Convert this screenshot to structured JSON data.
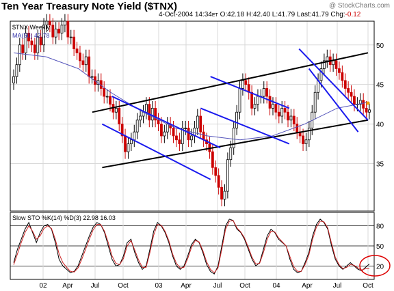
{
  "header": {
    "title": "Ten Year Treasury Note Yield ($TNX)",
    "watermark": "@ StockCharts.com",
    "date": "4-Oct-2004",
    "time": "14:34",
    "time_suffix": "ET",
    "open": "O:42.18",
    "high": "H:42.40",
    "low": "L:41.79",
    "last": "Last:41.79",
    "chg_label": "Chg:",
    "chg_value": "-0.12"
  },
  "price_panel": {
    "symbol_label": "$TNX Weekly",
    "ma_label": "MA(50) 42.78"
  },
  "sto_panel": {
    "label": "Slow STO %K(14) %D(3) 22.98 16.03"
  },
  "colors": {
    "up_bar": "#000000",
    "down_bar": "#cc0000",
    "ma_line": "#5555bb",
    "channel_black": "#000000",
    "channel_blue": "#1a1aee",
    "k_line": "#000000",
    "d_line": "#cc2222",
    "highlight_circle": "#dd0000",
    "grid": "#d8d8d8"
  },
  "chart_data": [
    {
      "type": "candlestick",
      "title": "Ten Year Treasury Note Yield ($TNX)",
      "x_ticks": [
        "02",
        "Apr",
        "Jul",
        "Oct",
        "03",
        "Apr",
        "Jul",
        "Oct",
        "04",
        "Apr",
        "Jul",
        "Oct"
      ],
      "y_ticks": [
        35,
        40,
        45,
        50
      ],
      "ylim": [
        29,
        53
      ],
      "grid": true,
      "weekly_close": [
        46.0,
        47.5,
        50.0,
        49.0,
        51.5,
        50.5,
        50.0,
        49.0,
        51.0,
        50.0,
        52.5,
        53.0,
        52.5,
        51.0,
        52.0,
        51.5,
        52.5,
        53.0,
        51.0,
        51.0,
        49.5,
        49.0,
        48.0,
        47.5,
        48.5,
        46.0,
        46.0,
        45.0,
        45.5,
        44.5,
        43.5,
        43.5,
        42.5,
        41.5,
        42.0,
        40.0,
        38.5,
        36.5,
        37.5,
        38.0,
        39.0,
        40.5,
        41.0,
        41.5,
        42.5,
        40.5,
        42.0,
        40.5,
        40.0,
        38.5,
        39.0,
        40.0,
        39.5,
        38.5,
        38.0,
        37.5,
        39.5,
        39.5,
        38.0,
        38.5,
        39.5,
        41.0,
        39.0,
        38.0,
        37.5,
        36.5,
        34.5,
        33.5,
        32.0,
        30.5,
        31.5,
        35.5,
        37.0,
        39.5,
        41.5,
        44.5,
        45.5,
        45.0,
        44.0,
        42.0,
        42.5,
        43.5,
        43.5,
        44.5,
        43.5,
        42.0,
        42.5,
        41.5,
        41.0,
        42.0,
        41.5,
        40.5,
        41.0,
        40.0,
        39.0,
        38.5,
        37.5,
        38.0,
        39.5,
        41.5,
        44.0,
        45.5,
        47.0,
        48.0,
        48.5,
        47.5,
        48.0,
        47.0,
        46.5,
        45.5,
        44.5,
        44.0,
        43.5,
        42.5,
        42.5,
        43.0,
        42.0,
        41.5,
        41.79
      ],
      "ma50_level_approx": [
        49.0,
        48.5,
        47.0,
        44.0,
        41.5,
        39.5,
        38.5,
        38.0,
        38.5,
        40.0,
        42.0,
        42.78
      ],
      "channels": [
        {
          "color": "black",
          "from": [
            "Jun-2002",
            41.5
          ],
          "to": [
            "Oct-2004",
            49.0
          ]
        },
        {
          "color": "black",
          "from": [
            "Jul-2002",
            34.5
          ],
          "to": [
            "Oct-2004",
            40.5
          ]
        },
        {
          "color": "blue",
          "from": [
            "Aug-2002",
            43.5
          ],
          "to": [
            "Jul-2003",
            37.0
          ]
        },
        {
          "color": "blue",
          "from": [
            "Jul-2002",
            40.0
          ],
          "to": [
            "Jun-2003",
            33.0
          ]
        },
        {
          "color": "blue",
          "from": [
            "Jun-2003",
            46.0
          ],
          "to": [
            "Feb-2004",
            42.0
          ]
        },
        {
          "color": "blue",
          "from": [
            "May-2003",
            42.0
          ],
          "to": [
            "Feb-2004",
            37.5
          ]
        },
        {
          "color": "blue",
          "from": [
            "Mar-2004",
            49.5
          ],
          "to": [
            "Oct-2004",
            40.5
          ]
        },
        {
          "color": "blue",
          "from": [
            "Apr-2004",
            47.0
          ],
          "to": [
            "Sep-2004",
            39.0
          ]
        }
      ]
    },
    {
      "type": "line",
      "title": "Slow STO %K(14) %D(3) 22.98 16.03",
      "y_ticks": [
        20,
        50,
        80
      ],
      "ylim": [
        0,
        100
      ],
      "series": [
        {
          "name": "%K",
          "values": [
            25,
            45,
            60,
            75,
            85,
            70,
            55,
            70,
            80,
            82,
            75,
            55,
            30,
            20,
            15,
            10,
            12,
            20,
            35,
            50,
            65,
            78,
            85,
            82,
            70,
            50,
            30,
            20,
            22,
            35,
            55,
            60,
            40,
            25,
            15,
            20,
            45,
            72,
            85,
            80,
            70,
            55,
            35,
            20,
            15,
            20,
            35,
            52,
            60,
            55,
            40,
            22,
            12,
            8,
            20,
            50,
            80,
            90,
            88,
            75,
            70,
            60,
            45,
            30,
            20,
            25,
            45,
            65,
            75,
            70,
            60,
            55,
            50,
            30,
            15,
            10,
            12,
            25,
            40,
            65,
            82,
            90,
            85,
            75,
            50,
            30,
            20,
            15,
            20,
            25,
            20,
            15,
            13,
            18,
            22.98
          ]
        },
        {
          "name": "%D",
          "values": [
            22,
            38,
            55,
            70,
            80,
            72,
            60,
            65,
            76,
            80,
            76,
            60,
            38,
            25,
            18,
            12,
            11,
            17,
            30,
            45,
            60,
            74,
            82,
            82,
            72,
            55,
            35,
            24,
            22,
            31,
            50,
            58,
            44,
            29,
            18,
            18,
            40,
            66,
            82,
            81,
            72,
            58,
            38,
            24,
            17,
            18,
            31,
            48,
            58,
            56,
            43,
            26,
            15,
            10,
            17,
            45,
            75,
            87,
            88,
            77,
            71,
            62,
            48,
            33,
            23,
            24,
            40,
            60,
            72,
            71,
            62,
            56,
            50,
            34,
            19,
            12,
            12,
            22,
            36,
            60,
            78,
            87,
            86,
            77,
            54,
            33,
            22,
            16,
            18,
            22,
            21,
            17,
            14,
            16,
            16.03
          ]
        }
      ]
    }
  ]
}
